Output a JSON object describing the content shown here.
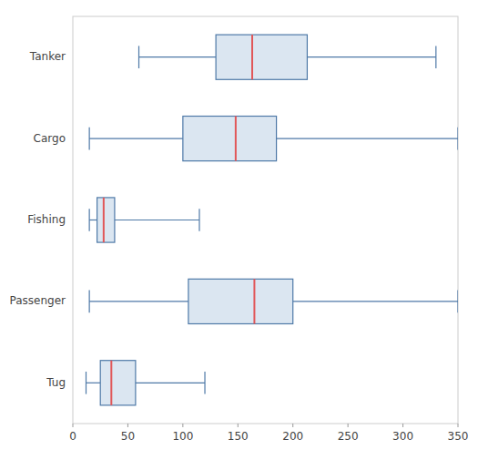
{
  "chart_data": {
    "type": "box",
    "orientation": "horizontal",
    "categories": [
      "Tanker",
      "Cargo",
      "Fishing",
      "Passenger",
      "Tug"
    ],
    "values": [
      {
        "whislo": 60,
        "q1": 130,
        "med": 163,
        "q3": 213,
        "whishi": 330
      },
      {
        "whislo": 15,
        "q1": 100,
        "med": 148,
        "q3": 185,
        "whishi": 350
      },
      {
        "whislo": 15,
        "q1": 22,
        "med": 28,
        "q3": 38,
        "whishi": 115
      },
      {
        "whislo": 15,
        "q1": 105,
        "med": 165,
        "q3": 200,
        "whishi": 350
      },
      {
        "whislo": 12,
        "q1": 25,
        "med": 35,
        "q3": 57,
        "whishi": 120
      }
    ],
    "xlim": [
      0,
      350
    ],
    "xticks": [
      0,
      50,
      100,
      150,
      200,
      250,
      300,
      350
    ],
    "grid": false
  }
}
